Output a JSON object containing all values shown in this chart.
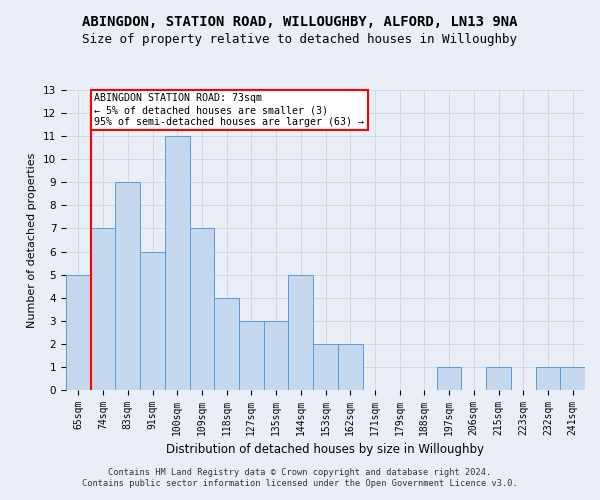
{
  "title": "ABINGDON, STATION ROAD, WILLOUGHBY, ALFORD, LN13 9NA",
  "subtitle": "Size of property relative to detached houses in Willoughby",
  "xlabel": "Distribution of detached houses by size in Willoughby",
  "ylabel": "Number of detached properties",
  "categories": [
    "65sqm",
    "74sqm",
    "83sqm",
    "91sqm",
    "100sqm",
    "109sqm",
    "118sqm",
    "127sqm",
    "135sqm",
    "144sqm",
    "153sqm",
    "162sqm",
    "171sqm",
    "179sqm",
    "188sqm",
    "197sqm",
    "206sqm",
    "215sqm",
    "223sqm",
    "232sqm",
    "241sqm"
  ],
  "values": [
    5,
    7,
    9,
    6,
    11,
    7,
    4,
    3,
    3,
    5,
    2,
    2,
    0,
    0,
    0,
    1,
    0,
    1,
    0,
    1,
    1
  ],
  "bar_color": "#c5d8ed",
  "bar_edge_color": "#5b9bd5",
  "annotation_box_text": "ABINGDON STATION ROAD: 73sqm\n← 5% of detached houses are smaller (3)\n95% of semi-detached houses are larger (63) →",
  "ylim": [
    0,
    13
  ],
  "yticks": [
    0,
    1,
    2,
    3,
    4,
    5,
    6,
    7,
    8,
    9,
    10,
    11,
    12,
    13
  ],
  "grid_color": "#d0d8e8",
  "background_color": "#eaeff7",
  "footer_line1": "Contains HM Land Registry data © Crown copyright and database right 2024.",
  "footer_line2": "Contains public sector information licensed under the Open Government Licence v3.0.",
  "red_line_x": 0.5,
  "title_fontsize": 10,
  "subtitle_fontsize": 9
}
